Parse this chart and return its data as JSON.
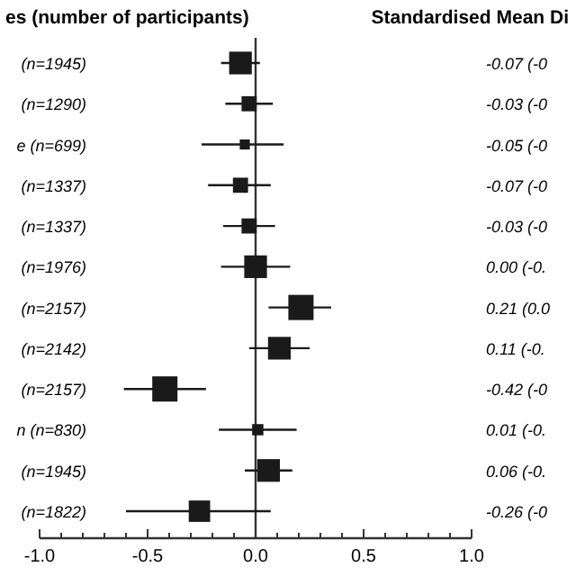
{
  "chart_data": {
    "type": "bubble",
    "orientation": "horizontal",
    "marker": "square",
    "title": "Standardised Mean Di",
    "ylabel": "es (number of participants)",
    "categories": [
      "(n=1945)",
      "(n=1290)",
      "e (n=699)",
      "(n=1337)",
      "(n=1337)",
      "(n=1976)",
      "(n=2157)",
      "(n=2142)",
      "(n=2157)",
      "n (n=830)",
      "(n=1945)",
      "(n=1822)"
    ],
    "values": [
      -0.07,
      -0.03,
      -0.05,
      -0.07,
      -0.03,
      0.0,
      0.21,
      0.11,
      -0.42,
      0.01,
      0.06,
      -0.26
    ],
    "errors": [
      [
        -0.16,
        0.02
      ],
      [
        -0.14,
        0.08
      ],
      [
        -0.25,
        0.13
      ],
      [
        -0.22,
        0.07
      ],
      [
        -0.15,
        0.09
      ],
      [
        -0.16,
        0.16
      ],
      [
        0.06,
        0.35
      ],
      [
        -0.03,
        0.25
      ],
      [
        -0.61,
        -0.23
      ],
      [
        -0.17,
        0.19
      ],
      [
        -0.05,
        0.17
      ],
      [
        -0.6,
        0.07
      ]
    ],
    "sizes": [
      0.81,
      0.36,
      0.16,
      0.36,
      0.36,
      0.81,
      1,
      0.81,
      1,
      0.2,
      0.81,
      0.72
    ],
    "value_labels": [
      "-0.07 (-0",
      "-0.03 (-0",
      "-0.05 (-0",
      "-0.07 (-0",
      "-0.03 (-0",
      "0.00 (-0.",
      "0.21 (0.0",
      "0.11 (-0.",
      "-0.42 (-0",
      "0.01 (-0.",
      "0.06 (-0.",
      "-0.26 (-0"
    ],
    "color": "#1a1a1a",
    "xlim": [
      -1,
      1
    ],
    "xticks": [
      {
        "value": -1,
        "label": "-1.0"
      },
      {
        "value": -0.9,
        "label": null
      },
      {
        "value": -0.8,
        "label": null
      },
      {
        "value": -0.7,
        "label": null
      },
      {
        "value": -0.6,
        "label": null
      },
      {
        "value": -0.5,
        "label": "-0.5"
      },
      {
        "value": -0.4,
        "label": null
      },
      {
        "value": -0.3,
        "label": null
      },
      {
        "value": -0.2,
        "label": null
      },
      {
        "value": -0.1,
        "label": null
      },
      {
        "value": 0,
        "label": "0.0"
      },
      {
        "value": 0.1,
        "label": null
      },
      {
        "value": 0.2,
        "label": null
      },
      {
        "value": 0.3,
        "label": null
      },
      {
        "value": 0.4,
        "label": null
      },
      {
        "value": 0.5,
        "label": "0.5"
      },
      {
        "value": 0.6,
        "label": null
      },
      {
        "value": 0.7,
        "label": null
      },
      {
        "value": 0.8,
        "label": null
      },
      {
        "value": 0.9,
        "label": null
      },
      {
        "value": 1,
        "label": "1.0"
      }
    ],
    "ref_lines": [
      {
        "axis": "x",
        "value": 0,
        "color": "#333333"
      }
    ]
  }
}
